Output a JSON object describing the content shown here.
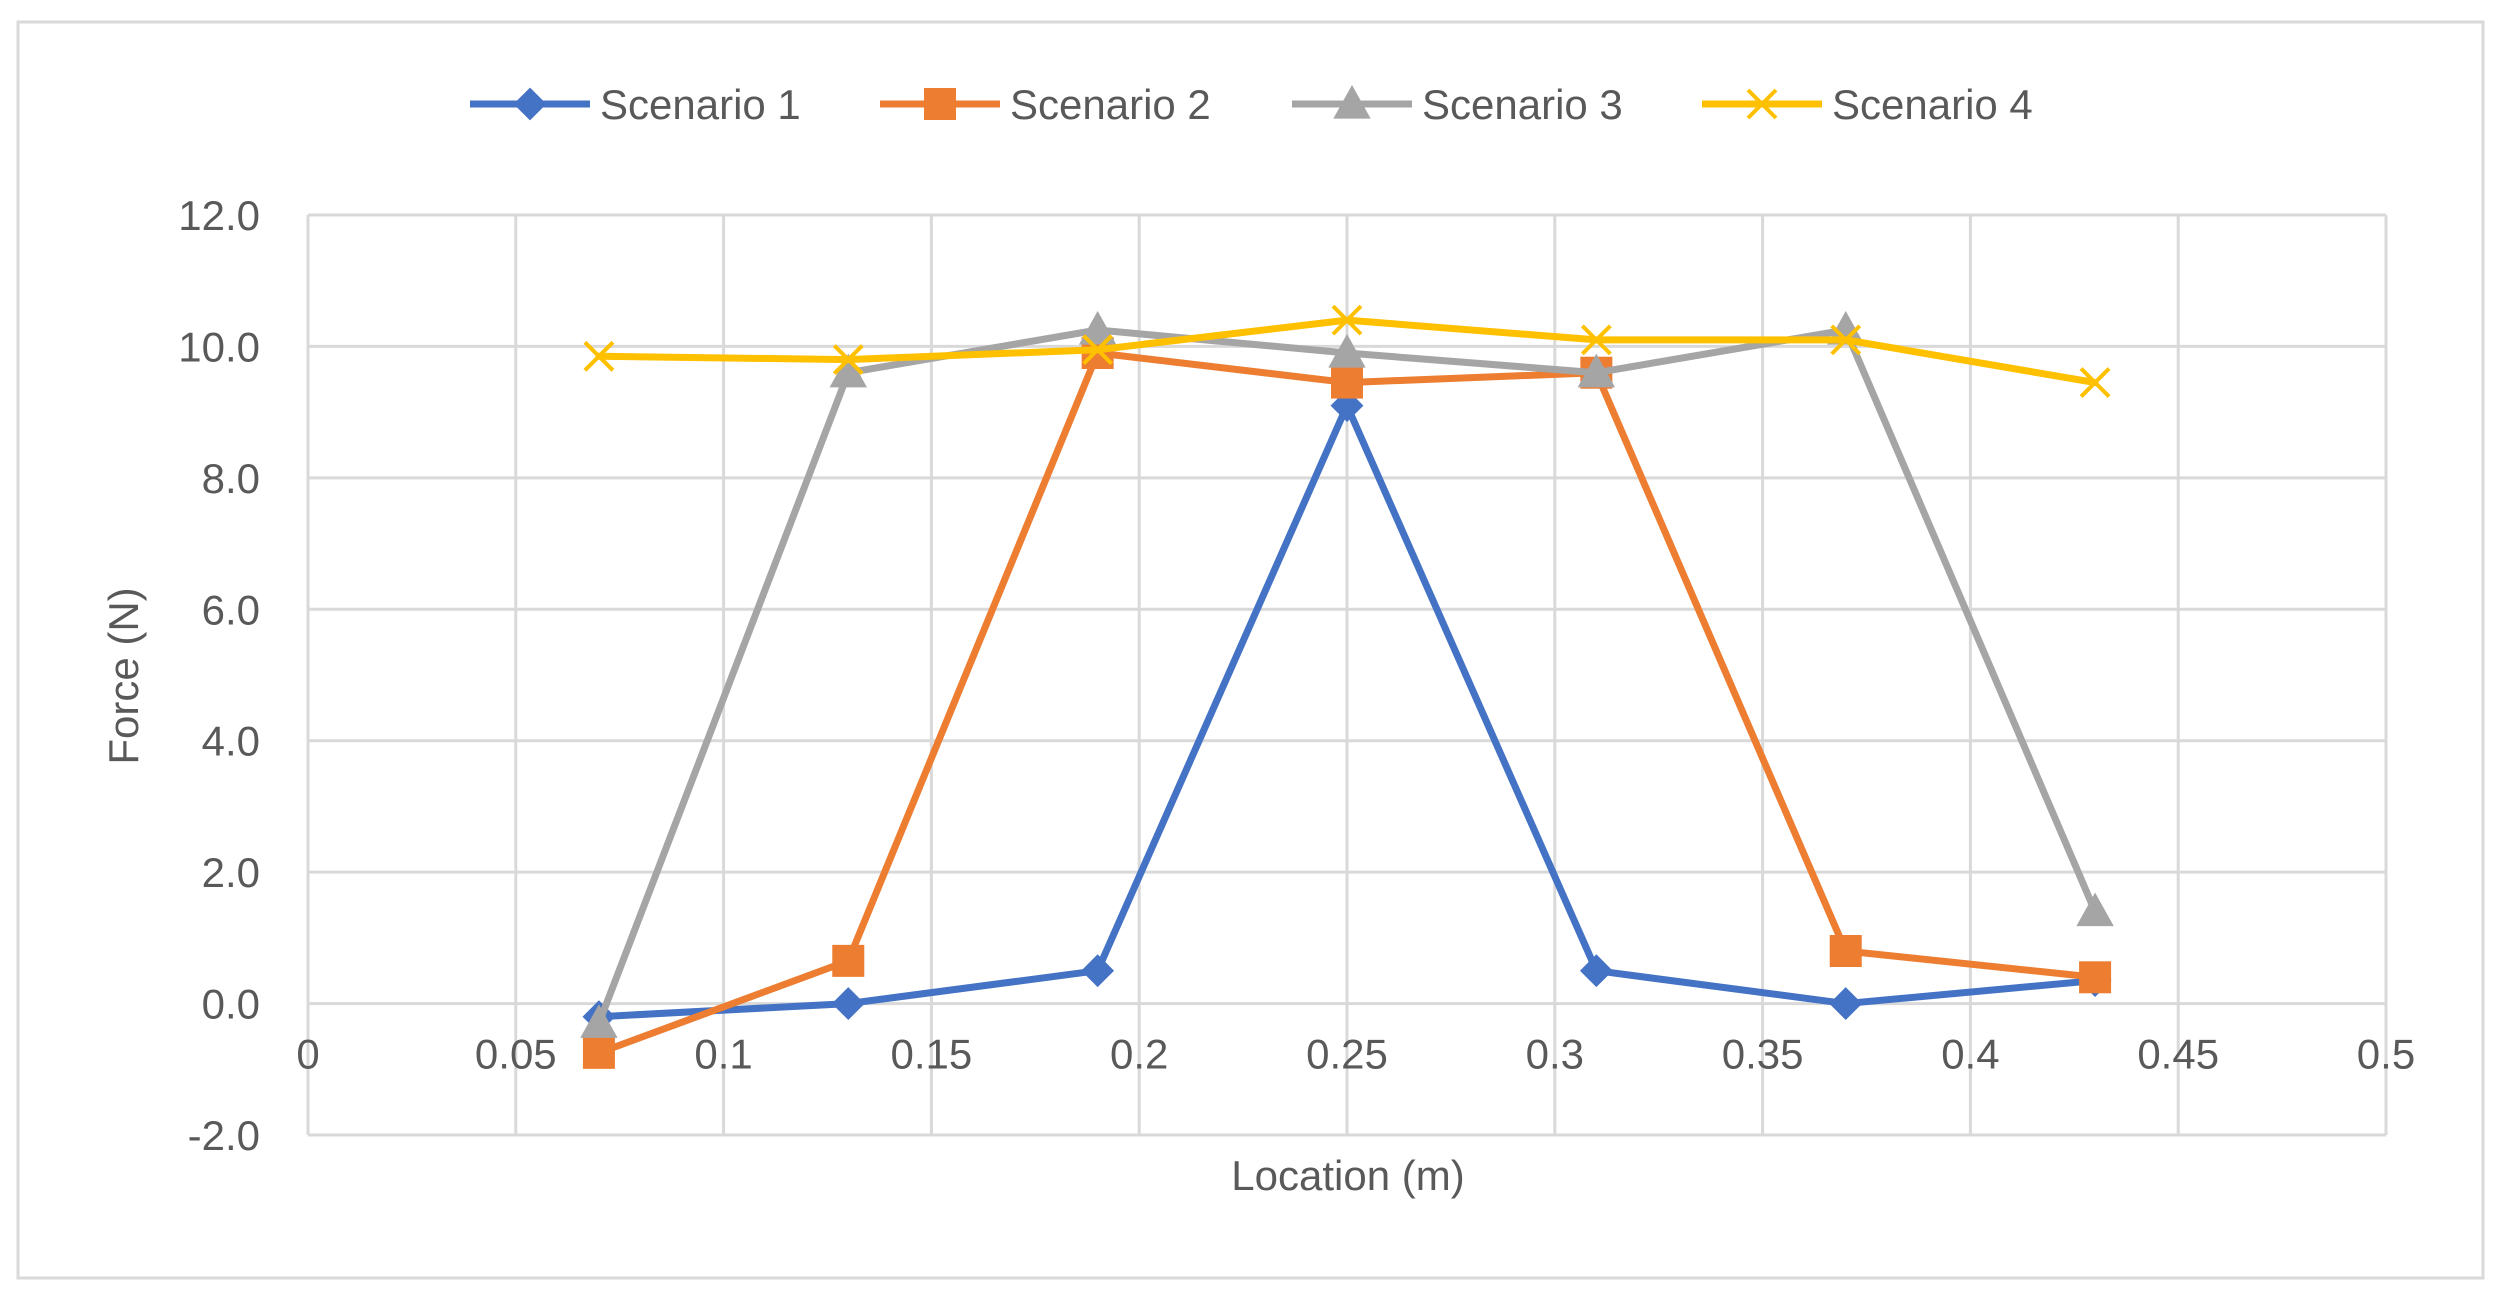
{
  "chart_data": {
    "type": "scatter",
    "title": "",
    "xlabel": "Location (m)",
    "ylabel": "Force (N)",
    "xlim": [
      0,
      0.5
    ],
    "ylim": [
      -2.0,
      12.0
    ],
    "xticks": [
      0,
      0.05,
      0.1,
      0.15,
      0.2,
      0.25,
      0.3,
      0.35,
      0.4,
      0.45,
      0.5
    ],
    "xtick_labels": [
      "0",
      "0.05",
      "0.1",
      "0.15",
      "0.2",
      "0.25",
      "0.3",
      "0.35",
      "0.4",
      "0.45",
      "0.5"
    ],
    "yticks": [
      -2.0,
      0.0,
      2.0,
      4.0,
      6.0,
      8.0,
      10.0,
      12.0
    ],
    "ytick_labels": [
      "-2.0",
      "0.0",
      "2.0",
      "4.0",
      "6.0",
      "8.0",
      "10.0",
      "12.0"
    ],
    "grid": true,
    "legend_position": "top-center",
    "x": [
      0.07,
      0.13,
      0.19,
      0.25,
      0.31,
      0.37,
      0.43
    ],
    "series": [
      {
        "name": "Scenario 1",
        "color": "#4472C4",
        "marker": "diamond",
        "values": [
          -0.2,
          0.0,
          0.5,
          9.1,
          0.5,
          0.0,
          0.35
        ]
      },
      {
        "name": "Scenario 2",
        "color": "#ED7D31",
        "marker": "square",
        "values": [
          -0.75,
          0.65,
          9.9,
          9.45,
          9.6,
          0.8,
          0.4
        ]
      },
      {
        "name": "Scenario 3",
        "color": "#A5A5A5",
        "marker": "triangle",
        "values": [
          -0.3,
          9.6,
          10.25,
          9.9,
          9.6,
          10.25,
          1.4
        ]
      },
      {
        "name": "Scenario 4",
        "color": "#FFC000",
        "marker": "x",
        "values": [
          9.85,
          9.8,
          9.95,
          10.4,
          10.1,
          10.1,
          9.45
        ]
      }
    ]
  }
}
